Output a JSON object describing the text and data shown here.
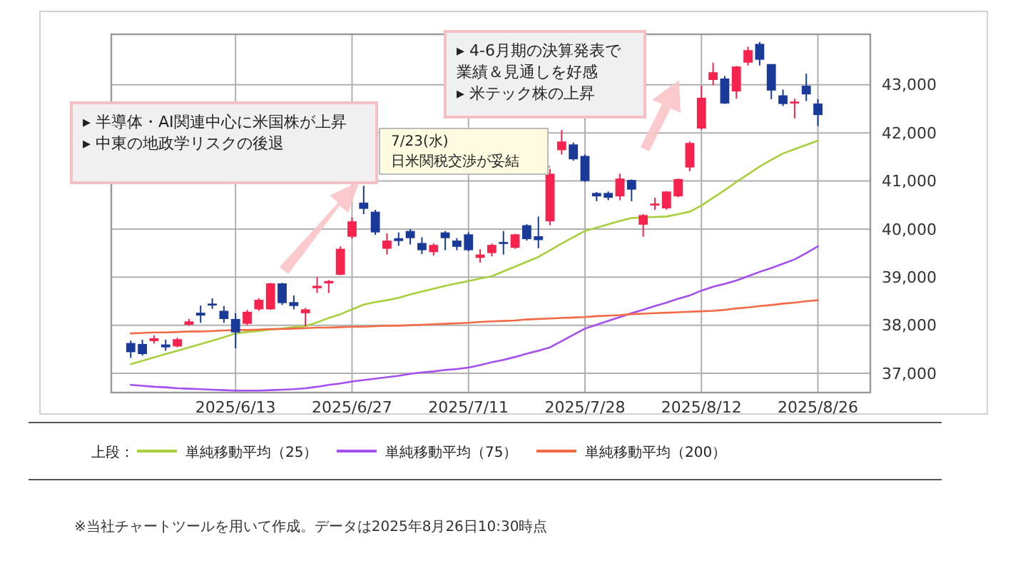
{
  "chart_data": {
    "type": "candlestick",
    "categories": [
      null,
      null,
      null,
      null,
      null,
      null,
      null,
      null,
      null,
      "2025/6/13",
      null,
      null,
      null,
      null,
      null,
      null,
      null,
      null,
      null,
      "2025/6/27",
      null,
      null,
      null,
      null,
      null,
      null,
      null,
      null,
      null,
      "2025/7/11",
      null,
      null,
      null,
      null,
      null,
      null,
      null,
      null,
      null,
      "2025/7/28",
      null,
      null,
      null,
      null,
      null,
      null,
      null,
      null,
      null,
      "2025/8/12",
      null,
      null,
      null,
      null,
      null,
      null,
      null,
      null,
      null,
      "2025/8/26"
    ],
    "ohlc": [
      [
        37630,
        37680,
        37320,
        37440
      ],
      [
        37610,
        37700,
        37370,
        37400
      ],
      [
        37670,
        37790,
        37620,
        37730
      ],
      [
        37600,
        37700,
        37470,
        37540
      ],
      [
        37560,
        37740,
        37540,
        37710
      ],
      [
        38010,
        38130,
        37990,
        38080
      ],
      [
        38260,
        38410,
        38050,
        38200
      ],
      [
        38450,
        38560,
        38340,
        38410
      ],
      [
        38300,
        38400,
        38050,
        38130
      ],
      [
        38130,
        38250,
        37520,
        37850
      ],
      [
        38030,
        38320,
        38000,
        38280
      ],
      [
        38330,
        38560,
        38300,
        38530
      ],
      [
        38330,
        38880,
        38320,
        38870
      ],
      [
        38870,
        38880,
        38420,
        38460
      ],
      [
        38480,
        38620,
        38330,
        38400
      ],
      [
        38250,
        38360,
        37980,
        38330
      ],
      [
        38770,
        39000,
        38670,
        38820
      ],
      [
        38870,
        38940,
        38670,
        38920
      ],
      [
        39050,
        39640,
        39040,
        39590
      ],
      [
        39840,
        40240,
        39800,
        40160
      ],
      [
        40550,
        40900,
        40310,
        40420
      ],
      [
        40360,
        40400,
        39880,
        39930
      ],
      [
        39590,
        39910,
        39470,
        39760
      ],
      [
        39810,
        39930,
        39650,
        39750
      ],
      [
        39960,
        40000,
        39680,
        39810
      ],
      [
        39710,
        39830,
        39480,
        39560
      ],
      [
        39520,
        39700,
        39450,
        39670
      ],
      [
        39930,
        39960,
        39560,
        39810
      ],
      [
        39760,
        39810,
        39560,
        39630
      ],
      [
        39890,
        39930,
        39540,
        39560
      ],
      [
        39400,
        39580,
        39300,
        39470
      ],
      [
        39500,
        39700,
        39430,
        39670
      ],
      [
        39730,
        39960,
        39470,
        39690
      ],
      [
        39610,
        39900,
        39590,
        39890
      ],
      [
        40080,
        40100,
        39760,
        39790
      ],
      [
        39850,
        40260,
        39600,
        39770
      ],
      [
        40160,
        41250,
        40080,
        41150
      ],
      [
        41640,
        42060,
        41550,
        41820
      ],
      [
        41760,
        41800,
        41420,
        41450
      ],
      [
        41520,
        41550,
        40980,
        41000
      ],
      [
        40750,
        40770,
        40580,
        40680
      ],
      [
        40750,
        40780,
        40600,
        40650
      ],
      [
        40680,
        41150,
        40600,
        41050
      ],
      [
        41020,
        41030,
        40580,
        40820
      ],
      [
        40090,
        40310,
        39840,
        40290
      ],
      [
        40490,
        40650,
        40400,
        40530
      ],
      [
        40430,
        40790,
        40400,
        40780
      ],
      [
        40680,
        41050,
        40660,
        41040
      ],
      [
        41280,
        41820,
        41200,
        41790
      ],
      [
        42090,
        42980,
        42070,
        42730
      ],
      [
        43100,
        43460,
        42990,
        43260
      ],
      [
        43130,
        43180,
        42600,
        42610
      ],
      [
        42860,
        43390,
        42710,
        43380
      ],
      [
        43460,
        43790,
        43400,
        43720
      ],
      [
        43850,
        43890,
        43400,
        43520
      ],
      [
        43430,
        43430,
        42700,
        42880
      ],
      [
        42780,
        42900,
        42560,
        42600
      ],
      [
        42610,
        42710,
        42300,
        42650
      ],
      [
        42980,
        43230,
        42660,
        42800
      ],
      [
        42610,
        42700,
        42140,
        42370
      ]
    ],
    "colors": [
      "#1a3a99",
      "#1a3a99",
      "#f5234d",
      "#1a3a99",
      "#f5234d",
      "#f5234d",
      "#1a3a99",
      "#1a3a99",
      "#1a3a99",
      "#1a3a99",
      "#f5234d",
      "#f5234d",
      "#f5234d",
      "#1a3a99",
      "#1a3a99",
      "#f5234d",
      "#f5234d",
      "#f5234d",
      "#f5234d",
      "#f5234d",
      "#1a3a99",
      "#1a3a99",
      "#f5234d",
      "#1a3a99",
      "#1a3a99",
      "#1a3a99",
      "#f5234d",
      "#1a3a99",
      "#1a3a99",
      "#1a3a99",
      "#f5234d",
      "#f5234d",
      "#1a3a99",
      "#f5234d",
      "#1a3a99",
      "#1a3a99",
      "#f5234d",
      "#f5234d",
      "#1a3a99",
      "#1a3a99",
      "#1a3a99",
      "#1a3a99",
      "#f5234d",
      "#1a3a99",
      "#f5234d",
      "#f5234d",
      "#f5234d",
      "#f5234d",
      "#f5234d",
      "#f5234d",
      "#f5234d",
      "#1a3a99",
      "#f5234d",
      "#f5234d",
      "#1a3a99",
      "#1a3a99",
      "#1a3a99",
      "#f5234d",
      "#1a3a99",
      "#1a3a99"
    ],
    "series": [
      {
        "type": "line",
        "name": "単純移動平均（25）",
        "color": "#a8cf3c",
        "values": [
          37190,
          37260,
          37330,
          37400,
          37470,
          37540,
          37610,
          37680,
          37750,
          37830,
          37860,
          37880,
          37910,
          37930,
          37960,
          37980,
          38060,
          38150,
          38230,
          38330,
          38430,
          38480,
          38520,
          38570,
          38640,
          38700,
          38760,
          38820,
          38870,
          38920,
          38970,
          39020,
          39120,
          39220,
          39320,
          39420,
          39560,
          39700,
          39830,
          39960,
          40030,
          40100,
          40170,
          40230,
          40240,
          40250,
          40260,
          40310,
          40360,
          40490,
          40650,
          40810,
          40980,
          41140,
          41300,
          41440,
          41570,
          41660,
          41750,
          41840
        ]
      },
      {
        "type": "line",
        "name": "単純移動平均（75）",
        "color": "#a64ff0",
        "values": [
          36760,
          36740,
          36720,
          36710,
          36690,
          36680,
          36670,
          36660,
          36650,
          36640,
          36640,
          36640,
          36650,
          36660,
          36670,
          36690,
          36720,
          36760,
          36790,
          36830,
          36860,
          36890,
          36920,
          36950,
          36990,
          37020,
          37040,
          37070,
          37090,
          37120,
          37170,
          37230,
          37280,
          37340,
          37410,
          37470,
          37540,
          37670,
          37800,
          37930,
          38010,
          38090,
          38170,
          38250,
          38320,
          38400,
          38470,
          38550,
          38620,
          38720,
          38800,
          38860,
          38930,
          39020,
          39110,
          39190,
          39280,
          39370,
          39500,
          39640
        ]
      },
      {
        "type": "line",
        "name": "単純移動平均（200）",
        "color": "#f26a45",
        "values": [
          37830,
          37840,
          37850,
          37850,
          37860,
          37870,
          37870,
          37880,
          37890,
          37900,
          37900,
          37910,
          37920,
          37920,
          37930,
          37940,
          37950,
          37950,
          37960,
          37970,
          37970,
          37980,
          37990,
          37990,
          38000,
          38010,
          38020,
          38030,
          38040,
          38050,
          38070,
          38080,
          38090,
          38100,
          38120,
          38130,
          38140,
          38150,
          38160,
          38170,
          38190,
          38200,
          38210,
          38230,
          38240,
          38250,
          38260,
          38270,
          38280,
          38290,
          38300,
          38320,
          38350,
          38370,
          38400,
          38420,
          38450,
          38470,
          38500,
          38520
        ]
      }
    ],
    "ylim": [
      36600,
      44050
    ],
    "yticks": [
      {
        "value": 37000,
        "label": "37,000"
      },
      {
        "value": 38000,
        "label": "38,000"
      },
      {
        "value": 39000,
        "label": "39,000"
      },
      {
        "value": 40000,
        "label": "40,000"
      },
      {
        "value": 41000,
        "label": "41,000"
      },
      {
        "value": 42000,
        "label": "42,000"
      },
      {
        "value": 43000,
        "label": "43,000"
      }
    ],
    "grid": true,
    "legend": "bottom",
    "legend_title": "上段：",
    "annotations": [
      "▸ 半導体・AI関連中心に米国株が上昇\n▸ 中東の地政学リスクの後退",
      "7/23(水)\n日米関税交渉が妥結",
      "▸ 4-6月期の決算発表で業績＆見通しを好感\n▸ 米テック株の上昇",
      "※当社チャートツールを用いて作成。データは2025年8月26日10:30時点"
    ]
  }
}
